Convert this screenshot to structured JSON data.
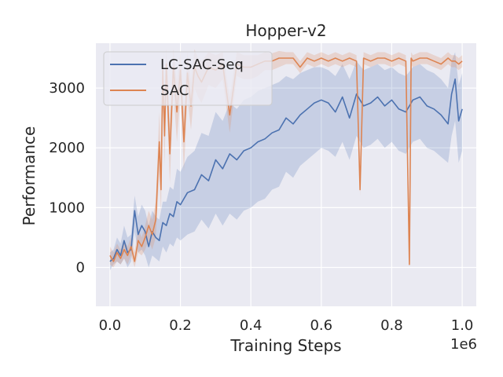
{
  "chart_data": {
    "type": "line",
    "title": "Hopper-v2",
    "xlabel": "Training Steps",
    "ylabel": "Performance",
    "x_multiplier_label": "1e6",
    "xlim": [
      -0.04,
      1.04
    ],
    "ylim": [
      -650,
      3750
    ],
    "xticks": [
      0.0,
      0.2,
      0.4,
      0.6,
      0.8,
      1.0
    ],
    "xtick_labels": [
      "0.0",
      "0.2",
      "0.4",
      "0.6",
      "0.8",
      "1.0"
    ],
    "yticks": [
      0,
      1000,
      2000,
      3000
    ],
    "ytick_labels": [
      "0",
      "1000",
      "2000",
      "3000"
    ],
    "grid": true,
    "legend_position": "top-left",
    "background": "#eaeaf2",
    "series": [
      {
        "name": "LC-SAC-Seq",
        "color": "#4c72b0",
        "x": [
          0.0,
          0.01,
          0.02,
          0.03,
          0.04,
          0.05,
          0.06,
          0.07,
          0.08,
          0.09,
          0.1,
          0.11,
          0.12,
          0.13,
          0.14,
          0.15,
          0.16,
          0.17,
          0.18,
          0.19,
          0.2,
          0.22,
          0.24,
          0.26,
          0.28,
          0.3,
          0.32,
          0.34,
          0.36,
          0.38,
          0.4,
          0.42,
          0.44,
          0.46,
          0.48,
          0.5,
          0.52,
          0.54,
          0.56,
          0.58,
          0.6,
          0.62,
          0.64,
          0.66,
          0.68,
          0.7,
          0.72,
          0.74,
          0.76,
          0.78,
          0.8,
          0.82,
          0.84,
          0.86,
          0.88,
          0.9,
          0.92,
          0.94,
          0.96,
          0.97,
          0.98,
          0.99,
          1.0
        ],
        "values": [
          100,
          150,
          300,
          200,
          450,
          250,
          300,
          950,
          550,
          700,
          600,
          350,
          600,
          500,
          450,
          750,
          700,
          900,
          850,
          1100,
          1050,
          1250,
          1300,
          1550,
          1450,
          1800,
          1650,
          1900,
          1800,
          1950,
          2000,
          2100,
          2150,
          2250,
          2300,
          2500,
          2400,
          2550,
          2650,
          2750,
          2800,
          2750,
          2600,
          2850,
          2500,
          2900,
          2700,
          2750,
          2850,
          2700,
          2800,
          2650,
          2600,
          2800,
          2850,
          2700,
          2650,
          2550,
          2400,
          2900,
          3150,
          2450,
          2650
        ],
        "band_low": [
          -50,
          50,
          100,
          50,
          150,
          0,
          100,
          600,
          250,
          300,
          200,
          0,
          200,
          150,
          100,
          350,
          250,
          400,
          350,
          500,
          450,
          550,
          600,
          800,
          650,
          900,
          700,
          900,
          800,
          950,
          1000,
          1100,
          1150,
          1300,
          1350,
          1600,
          1500,
          1700,
          1800,
          1900,
          2000,
          1950,
          1850,
          2100,
          1800,
          2200,
          2000,
          2050,
          2150,
          2000,
          2100,
          1950,
          1900,
          2100,
          2150,
          2000,
          1950,
          1850,
          1750,
          2200,
          2450,
          1750,
          1950
        ],
        "band_high": [
          250,
          300,
          500,
          400,
          700,
          500,
          550,
          1200,
          850,
          1050,
          950,
          700,
          950,
          850,
          800,
          1100,
          1100,
          1350,
          1300,
          1650,
          1600,
          1850,
          1950,
          2250,
          2200,
          2600,
          2450,
          2750,
          2650,
          2800,
          2850,
          2950,
          3000,
          3050,
          3100,
          3200,
          3150,
          3250,
          3300,
          3350,
          3350,
          3300,
          3200,
          3400,
          3150,
          3450,
          3300,
          3350,
          3400,
          3300,
          3350,
          3250,
          3200,
          3350,
          3400,
          3300,
          3250,
          3150,
          3000,
          3450,
          3600,
          3050,
          3250
        ]
      },
      {
        "name": "SAC",
        "color": "#dd8452",
        "x": [
          0.0,
          0.01,
          0.02,
          0.03,
          0.04,
          0.05,
          0.06,
          0.07,
          0.08,
          0.09,
          0.1,
          0.11,
          0.12,
          0.13,
          0.14,
          0.145,
          0.15,
          0.155,
          0.16,
          0.17,
          0.18,
          0.19,
          0.2,
          0.21,
          0.22,
          0.23,
          0.24,
          0.25,
          0.26,
          0.28,
          0.3,
          0.32,
          0.34,
          0.36,
          0.38,
          0.4,
          0.42,
          0.44,
          0.46,
          0.48,
          0.5,
          0.52,
          0.54,
          0.56,
          0.58,
          0.6,
          0.62,
          0.64,
          0.66,
          0.68,
          0.7,
          0.71,
          0.72,
          0.74,
          0.76,
          0.78,
          0.8,
          0.82,
          0.84,
          0.85,
          0.855,
          0.86,
          0.88,
          0.9,
          0.92,
          0.94,
          0.96,
          0.97,
          0.98,
          0.99,
          1.0
        ],
        "values": [
          200,
          100,
          250,
          150,
          300,
          200,
          350,
          100,
          450,
          350,
          500,
          700,
          550,
          800,
          2100,
          1300,
          3300,
          2200,
          3400,
          1900,
          3350,
          2600,
          3300,
          2100,
          3250,
          2700,
          3350,
          3200,
          3100,
          3350,
          3300,
          3400,
          2550,
          3400,
          3350,
          3350,
          3400,
          3450,
          3450,
          3500,
          3500,
          3500,
          3350,
          3500,
          3450,
          3500,
          3450,
          3500,
          3450,
          3500,
          3450,
          1300,
          3500,
          3450,
          3500,
          3500,
          3450,
          3500,
          3450,
          50,
          3500,
          3450,
          3500,
          3500,
          3450,
          3400,
          3500,
          3450,
          3450,
          3400,
          3450
        ],
        "band_low": [
          50,
          0,
          100,
          50,
          150,
          50,
          200,
          0,
          250,
          200,
          300,
          450,
          300,
          500,
          1600,
          900,
          2900,
          1700,
          3000,
          1400,
          2950,
          2100,
          2900,
          1600,
          2850,
          2300,
          3000,
          2850,
          2750,
          3050,
          3000,
          3150,
          2250,
          3200,
          3150,
          3150,
          3200,
          3300,
          3300,
          3350,
          3400,
          3400,
          3250,
          3400,
          3350,
          3400,
          3350,
          3400,
          3350,
          3400,
          3350,
          1200,
          3400,
          3350,
          3400,
          3400,
          3350,
          3400,
          3350,
          0,
          3400,
          3350,
          3400,
          3400,
          3350,
          3300,
          3400,
          3350,
          3350,
          3300,
          3350
        ],
        "band_high": [
          350,
          250,
          400,
          300,
          450,
          350,
          500,
          250,
          650,
          500,
          700,
          950,
          800,
          1100,
          2600,
          1700,
          3600,
          2700,
          3650,
          2400,
          3650,
          3100,
          3600,
          2600,
          3600,
          3100,
          3650,
          3500,
          3450,
          3600,
          3550,
          3600,
          2850,
          3600,
          3550,
          3550,
          3550,
          3600,
          3580,
          3620,
          3600,
          3600,
          3450,
          3600,
          3550,
          3600,
          3550,
          3600,
          3550,
          3600,
          3550,
          1400,
          3600,
          3550,
          3600,
          3600,
          3550,
          3600,
          3550,
          100,
          3600,
          3550,
          3600,
          3600,
          3550,
          3500,
          3600,
          3550,
          3550,
          3500,
          3550
        ]
      }
    ]
  }
}
